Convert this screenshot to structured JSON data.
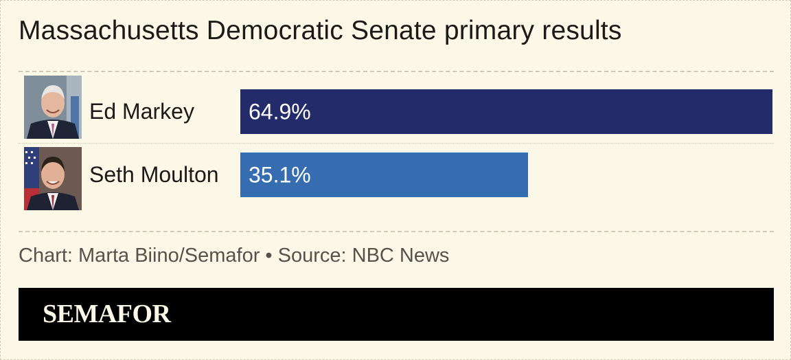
{
  "title": "Massachusetts Democratic Senate primary results",
  "chart_data": {
    "type": "bar",
    "orientation": "horizontal",
    "categories": [
      "Ed Markey",
      "Seth Moulton"
    ],
    "values": [
      64.9,
      35.1
    ],
    "value_labels": [
      "64.9%",
      "35.1%"
    ],
    "colors": [
      "#232b6a",
      "#356db0"
    ],
    "xlim": [
      0,
      64.9
    ],
    "grid": false,
    "legend": "none"
  },
  "candidates": [
    {
      "name": "Ed Markey",
      "label": "64.9%",
      "portrait_icon": "candidate-portrait-icon"
    },
    {
      "name": "Seth Moulton",
      "label": "35.1%",
      "portrait_icon": "candidate-portrait-icon"
    }
  ],
  "credit": "Chart: Marta Biino/Semafor • Source: NBC News",
  "brand": "SEMAFOR",
  "colors": {
    "background": "#fbf8e8",
    "footer": "#000000",
    "text": "#1c1a16"
  }
}
